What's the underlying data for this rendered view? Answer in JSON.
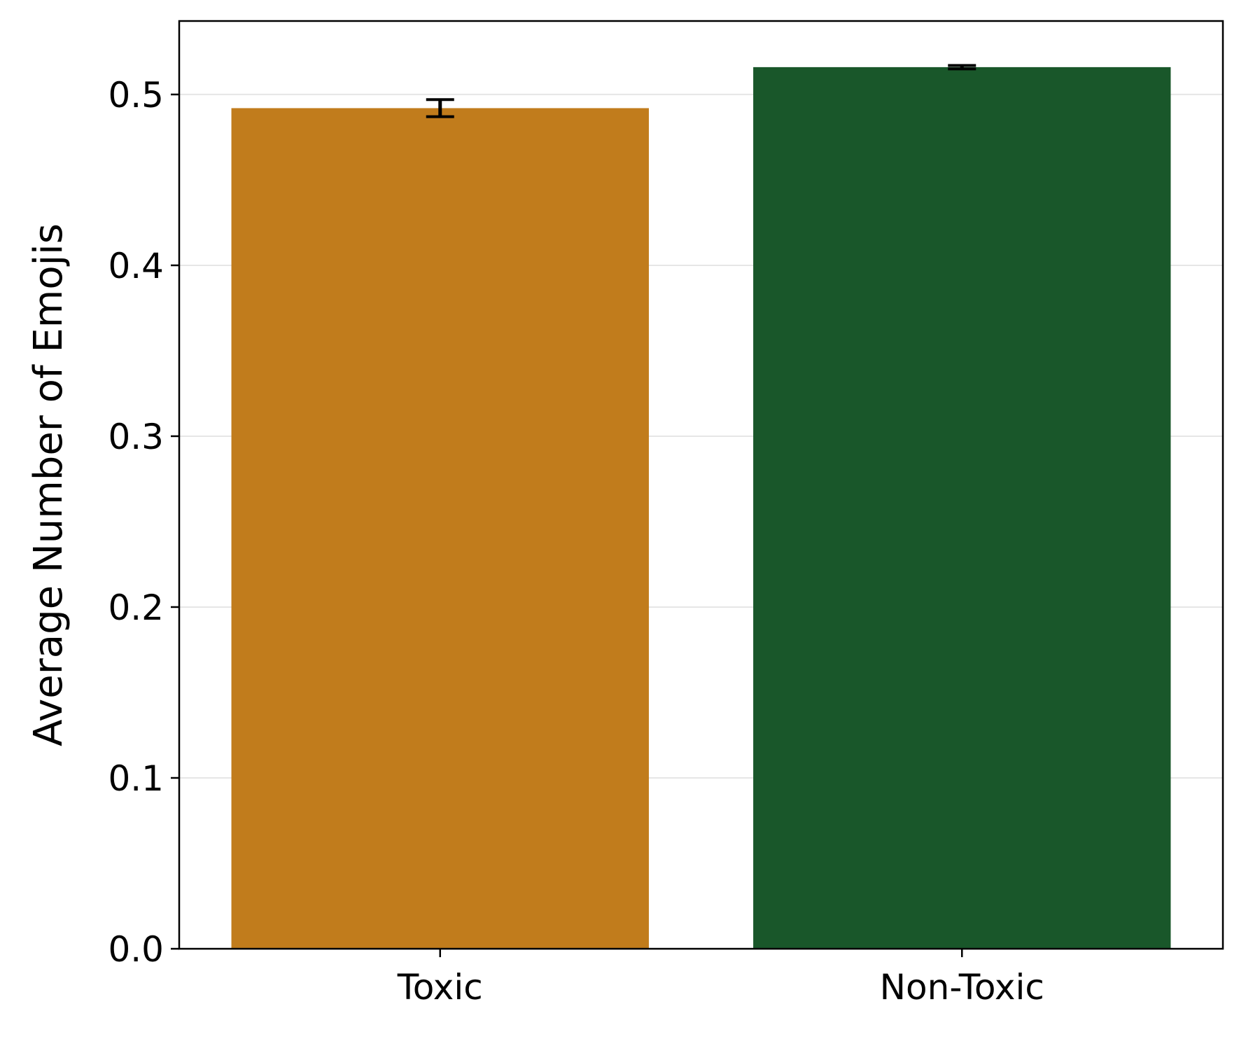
{
  "chart_data": {
    "type": "bar",
    "title": "",
    "xlabel": "",
    "ylabel": "Average Number of Emojis",
    "categories": [
      "Toxic",
      "Non-Toxic"
    ],
    "values": [
      0.492,
      0.516
    ],
    "error": [
      0.005,
      0.001
    ],
    "colors": [
      "#c17c1c",
      "#19572a"
    ],
    "ylim": [
      0,
      0.543
    ],
    "yticks": [
      0.0,
      0.1,
      0.2,
      0.3,
      0.4,
      0.5
    ],
    "ytick_labels": [
      "0.0",
      "0.1",
      "0.2",
      "0.3",
      "0.4",
      "0.5"
    ],
    "grid": "horizontal",
    "grid_color": "#e6e6e6",
    "legend": "none"
  }
}
